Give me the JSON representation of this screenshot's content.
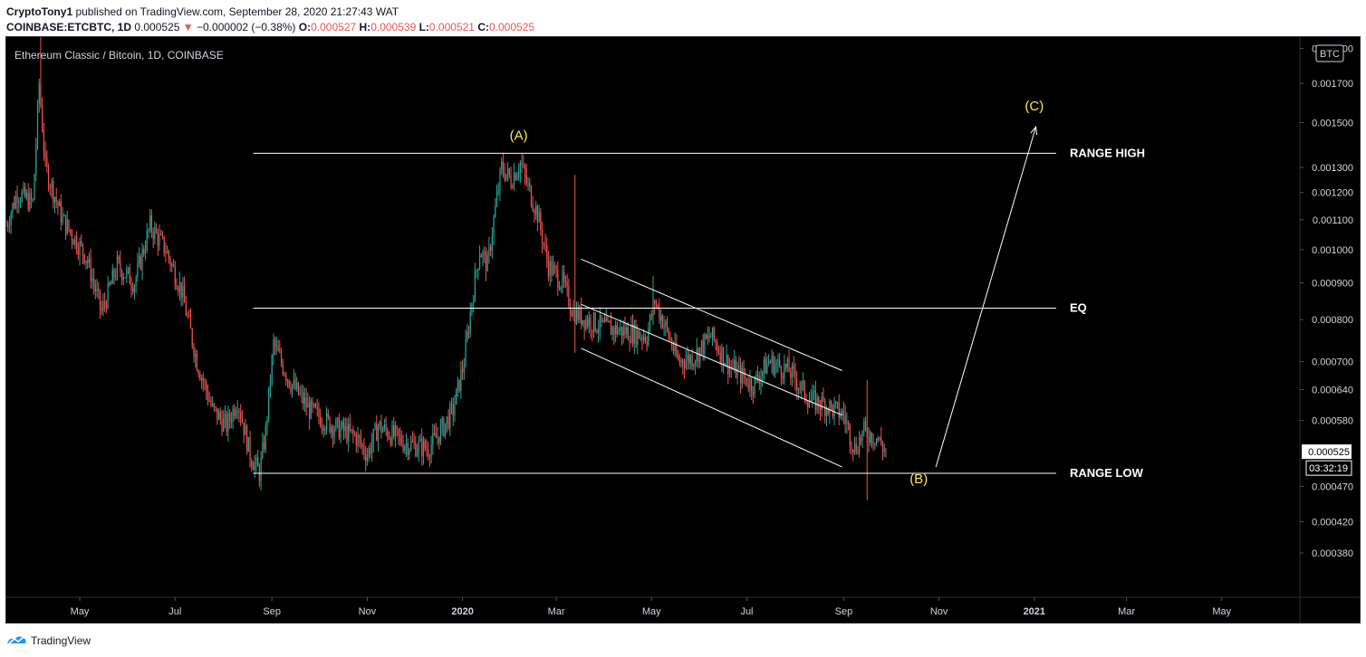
{
  "header": {
    "publisher": "CryptoTony1",
    "published_text": " published on TradingView.com, September 28, 2020 21:27:43 WAT",
    "symbol_line": {
      "symbol": "COINBASE:ETCBTC, 1D",
      "last": "0.000525",
      "change": "−0.000002 (−0.38%)",
      "o_label": "O:",
      "o": "0.000527",
      "h_label": "H:",
      "h": "0.000539",
      "l_label": "L:",
      "l": "0.000521",
      "c_label": "C:",
      "c": "0.000525"
    }
  },
  "chart_title": "Ethereum Classic / Bitcoin, 1D, COINBASE",
  "currency_badge": "BTC",
  "current_price_label": "0.000525",
  "countdown_label": "03:32:19",
  "footer": {
    "brand": "TradingView"
  },
  "colors": {
    "up": "#26a69a",
    "down": "#ef5350",
    "annotation": "#ffeb3b",
    "level_line": "#ffffff",
    "background": "#000000",
    "axis_text": "#d1d4dc"
  },
  "chart_data": {
    "type": "candlestick",
    "y_scale": "log",
    "ylim": [
      0.00033,
      0.00197
    ],
    "xlim": [
      "2019-03-15",
      "2021-06-20"
    ],
    "y_ticks": [
      "0.001900",
      "0.001700",
      "0.001500",
      "0.001300",
      "0.001200",
      "0.001100",
      "0.001000",
      "0.000900",
      "0.000800",
      "0.000700",
      "0.000640",
      "0.000580",
      "0.000470",
      "0.000420",
      "0.000380"
    ],
    "x_ticks": [
      {
        "label": "May",
        "date": "2019-05-01"
      },
      {
        "label": "Jul",
        "date": "2019-07-01"
      },
      {
        "label": "Sep",
        "date": "2019-09-01"
      },
      {
        "label": "Nov",
        "date": "2019-11-01"
      },
      {
        "label": "2020",
        "date": "2020-01-01",
        "bold": true
      },
      {
        "label": "Mar",
        "date": "2020-03-01"
      },
      {
        "label": "May",
        "date": "2020-05-01"
      },
      {
        "label": "Jul",
        "date": "2020-07-01"
      },
      {
        "label": "Sep",
        "date": "2020-09-01"
      },
      {
        "label": "Nov",
        "date": "2020-11-01"
      },
      {
        "label": "2021",
        "date": "2021-01-01",
        "bold": true
      },
      {
        "label": "Mar",
        "date": "2021-03-01"
      },
      {
        "label": "May",
        "date": "2021-05-01"
      }
    ],
    "price_path": [
      [
        "2019-03-15",
        0.00108
      ],
      [
        "2019-03-22",
        0.0012
      ],
      [
        "2019-04-01",
        0.00116
      ],
      [
        "2019-04-05",
        0.0017
      ],
      [
        "2019-04-09",
        0.0013
      ],
      [
        "2019-04-20",
        0.0011
      ],
      [
        "2019-05-05",
        0.00098
      ],
      [
        "2019-05-15",
        0.00082
      ],
      [
        "2019-05-25",
        0.00095
      ],
      [
        "2019-06-05",
        0.0009
      ],
      [
        "2019-06-15",
        0.00108
      ],
      [
        "2019-06-25",
        0.001
      ],
      [
        "2019-07-05",
        0.00088
      ],
      [
        "2019-07-15",
        0.0007
      ],
      [
        "2019-07-25",
        0.0006
      ],
      [
        "2019-08-03",
        0.00057
      ],
      [
        "2019-08-10",
        0.00062
      ],
      [
        "2019-08-18",
        0.00052
      ],
      [
        "2019-08-24",
        0.00049
      ],
      [
        "2019-08-28",
        0.00056
      ],
      [
        "2019-09-02",
        0.00074
      ],
      [
        "2019-09-12",
        0.00066
      ],
      [
        "2019-09-25",
        0.0006
      ],
      [
        "2019-10-10",
        0.00057
      ],
      [
        "2019-10-25",
        0.00055
      ],
      [
        "2019-11-01",
        0.00052
      ],
      [
        "2019-11-08",
        0.00057
      ],
      [
        "2019-11-25",
        0.00054
      ],
      [
        "2019-12-10",
        0.00053
      ],
      [
        "2019-12-18",
        0.00056
      ],
      [
        "2019-12-26",
        0.0006
      ],
      [
        "2020-01-02",
        0.0007
      ],
      [
        "2020-01-07",
        0.00085
      ],
      [
        "2020-01-12",
        0.001
      ],
      [
        "2020-01-17",
        0.00095
      ],
      [
        "2020-01-21",
        0.0011
      ],
      [
        "2020-01-26",
        0.0013
      ],
      [
        "2020-02-01",
        0.00125
      ],
      [
        "2020-02-07",
        0.00132
      ],
      [
        "2020-02-12",
        0.00122
      ],
      [
        "2020-02-18",
        0.00112
      ],
      [
        "2020-02-25",
        0.00095
      ],
      [
        "2020-03-05",
        0.0009
      ],
      [
        "2020-03-12",
        0.00082
      ],
      [
        "2020-03-20",
        0.0008
      ],
      [
        "2020-04-01",
        0.00078
      ],
      [
        "2020-04-15",
        0.00077
      ],
      [
        "2020-04-28",
        0.00076
      ],
      [
        "2020-05-03",
        0.00085
      ],
      [
        "2020-05-10",
        0.00078
      ],
      [
        "2020-05-18",
        0.0007
      ],
      [
        "2020-05-28",
        0.00071
      ],
      [
        "2020-06-08",
        0.00076
      ],
      [
        "2020-06-20",
        0.00069
      ],
      [
        "2020-07-05",
        0.00065
      ],
      [
        "2020-07-15",
        0.0007
      ],
      [
        "2020-07-28",
        0.00068
      ],
      [
        "2020-08-10",
        0.00062
      ],
      [
        "2020-08-20",
        0.00061
      ],
      [
        "2020-09-01",
        0.00059
      ],
      [
        "2020-09-08",
        0.00053
      ],
      [
        "2020-09-14",
        0.00056
      ],
      [
        "2020-09-22",
        0.00055
      ],
      [
        "2020-09-28",
        0.000525
      ]
    ],
    "spikes": [
      {
        "date": "2019-04-06",
        "high": 0.00197
      },
      {
        "date": "2020-03-13",
        "high": 0.00127,
        "low": 0.00072
      },
      {
        "date": "2020-05-02",
        "high": 0.00092
      },
      {
        "date": "2020-09-16",
        "high": 0.00066,
        "low": 0.00045
      }
    ],
    "last_close": 0.000525,
    "horizontal_lines": [
      {
        "name": "RANGE HIGH",
        "price": 0.00136,
        "from": "2019-08-20",
        "to": "2021-01-15"
      },
      {
        "name": "EQ",
        "price": 0.00083,
        "from": "2019-08-20",
        "to": "2021-01-15"
      },
      {
        "name": "RANGE LOW",
        "price": 0.00049,
        "from": "2019-08-20",
        "to": "2021-01-15"
      }
    ],
    "channel": {
      "upper": [
        [
          "2020-03-17",
          0.00097
        ],
        [
          "2020-08-31",
          0.00068
        ]
      ],
      "middle": [
        [
          "2020-03-17",
          0.00084
        ],
        [
          "2020-08-31",
          0.00059
        ]
      ],
      "lower": [
        [
          "2020-03-17",
          0.00073
        ],
        [
          "2020-08-31",
          0.0005
        ]
      ]
    },
    "arrow": {
      "from": [
        "2020-10-30",
        0.0005
      ],
      "to": [
        "2021-01-02",
        0.00148
      ]
    },
    "annotations": [
      {
        "label": "(A)",
        "date": "2020-02-06",
        "price": 0.00142
      },
      {
        "label": "(B)",
        "date": "2020-10-19",
        "price": 0.000475
      },
      {
        "label": "(C)",
        "date": "2021-01-01",
        "price": 0.00156
      }
    ],
    "line_labels": [
      "RANGE HIGH",
      "EQ",
      "RANGE LOW"
    ]
  }
}
